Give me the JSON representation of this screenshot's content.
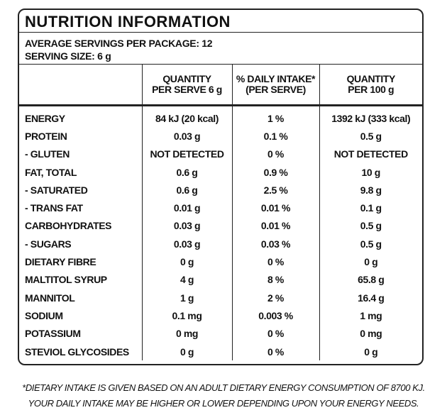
{
  "title": "NUTRITION INFORMATION",
  "servings": [
    "AVERAGE SERVINGS PER PACKAGE: 12",
    "SERVING SIZE: 6 g"
  ],
  "table": {
    "header": [
      [
        "QUANTITY",
        "PER SERVE 6 g"
      ],
      [
        "% DAILY INTAKE*",
        "(PER SERVE)"
      ],
      [
        "QUANTITY",
        "PER 100 g"
      ]
    ],
    "rows": [
      [
        "ENERGY",
        "84 kJ (20 kcal)",
        "1 %",
        "1392 kJ (333 kcal)"
      ],
      [
        "PROTEIN",
        "0.03 g",
        "0.1 %",
        "0.5 g"
      ],
      [
        "- GLUTEN",
        "NOT DETECTED",
        "0 %",
        "NOT DETECTED"
      ],
      [
        "FAT, TOTAL",
        "0.6 g",
        "0.9 %",
        "10 g"
      ],
      [
        "- SATURATED",
        "0.6 g",
        "2.5 %",
        "9.8 g"
      ],
      [
        "- TRANS FAT",
        "0.01 g",
        "0.01 %",
        "0.1 g"
      ],
      [
        "CARBOHYDRATES",
        "0.03 g",
        "0.01 %",
        "0.5 g"
      ],
      [
        "- SUGARS",
        "0.03 g",
        "0.03 %",
        "0.5 g"
      ],
      [
        "DIETARY FIBRE",
        "0 g",
        "0 %",
        "0 g"
      ],
      [
        "MALTITOL SYRUP",
        "4 g",
        "8 %",
        "65.8 g"
      ],
      [
        "MANNITOL",
        "1 g",
        "2 %",
        "16.4 g"
      ],
      [
        "SODIUM",
        "0.1 mg",
        "0.003 %",
        "1 mg"
      ],
      [
        "POTASSIUM",
        "0 mg",
        "0 %",
        "0 mg"
      ],
      [
        "STEVIOL GLYCOSIDES",
        "0 g",
        "0 %",
        "0 g"
      ]
    ]
  },
  "footnote": [
    "*DIETARY INTAKE IS GIVEN BASED ON AN ADULT DIETARY ENERGY CONSUMPTION OF 8700 KJ.",
    "YOUR DAILY INTAKE MAY BE HIGHER OR LOWER DEPENDING UPON YOUR ENERGY NEEDS."
  ]
}
